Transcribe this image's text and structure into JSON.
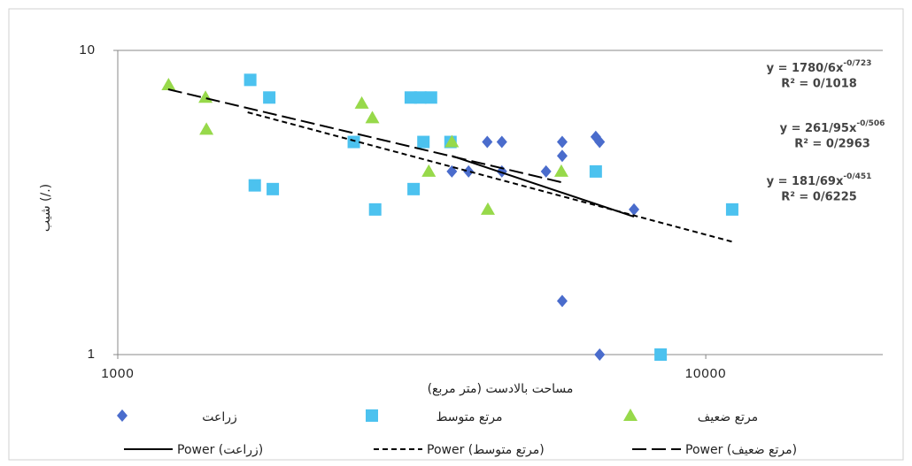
{
  "chart_data": {
    "type": "scatter",
    "x_label": "مساحت بالادست (متر مربع)",
    "y_label": "شیب (/.)",
    "xlim": [
      1000,
      20000
    ],
    "ylim": [
      1,
      10
    ],
    "log_x": true,
    "log_y": true,
    "xticks": [
      1000,
      10000
    ],
    "yticks": [
      1,
      10
    ],
    "grid": true,
    "series": [
      {
        "name": "زراعت",
        "marker": "diamond",
        "color": "#4a6ccc",
        "x": [
          4250,
          4500,
          5700,
          6500,
          6600,
          5700,
          5350,
          3700,
          3950,
          4500,
          7550,
          5700,
          6600
        ],
        "values": [
          5,
          5,
          5,
          5.2,
          5,
          4.5,
          4,
          4,
          4,
          4,
          3,
          1.5,
          1
        ]
      },
      {
        "name": "مرتع متوسط",
        "marker": "square",
        "color": "#4cc2ef",
        "x": [
          1680,
          1810,
          3150,
          3270,
          3410,
          2520,
          3310,
          3680,
          6500,
          1710,
          1835,
          3185,
          2740,
          11090,
          8380
        ],
        "values": [
          8,
          7,
          7,
          7,
          7,
          5,
          5,
          5,
          4,
          3.6,
          3.5,
          3.5,
          3,
          3,
          1
        ]
      },
      {
        "name": "مرتع ضعیف",
        "marker": "triangle",
        "color": "#97d94a",
        "x": [
          1220,
          1410,
          1415,
          2600,
          2710,
          3700,
          3380,
          4260,
          5680
        ],
        "values": [
          7.7,
          7,
          5.5,
          6.7,
          6,
          5,
          4,
          3,
          4
        ]
      }
    ],
    "trendlines": [
      {
        "name": "Power (زراعت)",
        "dash": "solid",
        "color": "#000000",
        "x": [
          3700,
          7550
        ],
        "values": [
          4.5,
          2.84
        ]
      },
      {
        "name": "Power (مرتع متوسط)",
        "dash": "short",
        "color": "#000000",
        "x": [
          1663,
          11090
        ],
        "values": [
          6.26,
          2.35
        ]
      },
      {
        "name": "Power (مرتع ضعیف)",
        "dash": "long",
        "color": "#000000",
        "x": [
          1218,
          5770
        ],
        "values": [
          7.45,
          3.66
        ]
      }
    ],
    "equations": [
      {
        "text": "y = 1780/6x",
        "exponent": "-0/723",
        "r2": "R² = 0/1018"
      },
      {
        "text": "y = 261/95x",
        "exponent": "-0/506",
        "r2": "R² = 0/2963"
      },
      {
        "text": "y = 181/69x",
        "exponent": "-0/451",
        "r2": "R² = 0/6225"
      }
    ]
  }
}
